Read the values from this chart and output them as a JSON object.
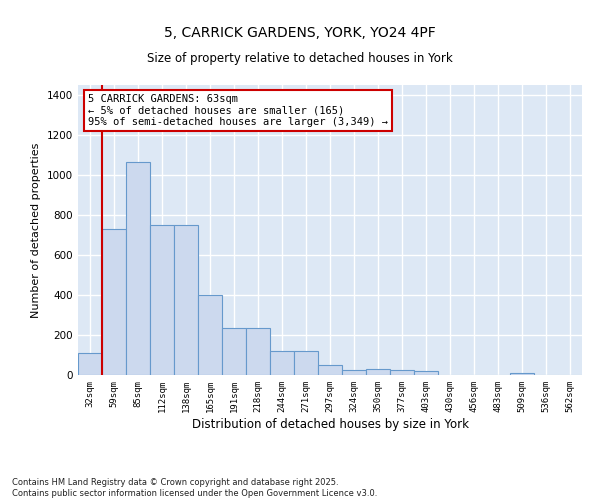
{
  "title_line1": "5, CARRICK GARDENS, YORK, YO24 4PF",
  "title_line2": "Size of property relative to detached houses in York",
  "xlabel": "Distribution of detached houses by size in York",
  "ylabel": "Number of detached properties",
  "bar_color": "#ccd9ee",
  "bar_edge_color": "#6699cc",
  "bar_edge_width": 0.8,
  "vline_color": "#cc0000",
  "vline_x": 0.5,
  "categories": [
    "32sqm",
    "59sqm",
    "85sqm",
    "112sqm",
    "138sqm",
    "165sqm",
    "191sqm",
    "218sqm",
    "244sqm",
    "271sqm",
    "297sqm",
    "324sqm",
    "350sqm",
    "377sqm",
    "403sqm",
    "430sqm",
    "456sqm",
    "483sqm",
    "509sqm",
    "536sqm",
    "562sqm"
  ],
  "values": [
    110,
    730,
    1065,
    750,
    750,
    400,
    235,
    235,
    120,
    120,
    50,
    25,
    30,
    25,
    20,
    0,
    0,
    0,
    10,
    0,
    0
  ],
  "ylim": [
    0,
    1450
  ],
  "yticks": [
    0,
    200,
    400,
    600,
    800,
    1000,
    1200,
    1400
  ],
  "annotation_text": "5 CARRICK GARDENS: 63sqm\n← 5% of detached houses are smaller (165)\n95% of semi-detached houses are larger (3,349) →",
  "footer_text": "Contains HM Land Registry data © Crown copyright and database right 2025.\nContains public sector information licensed under the Open Government Licence v3.0.",
  "background_color": "#dde8f5",
  "grid_color": "#ffffff",
  "fig_bg_color": "#ffffff"
}
